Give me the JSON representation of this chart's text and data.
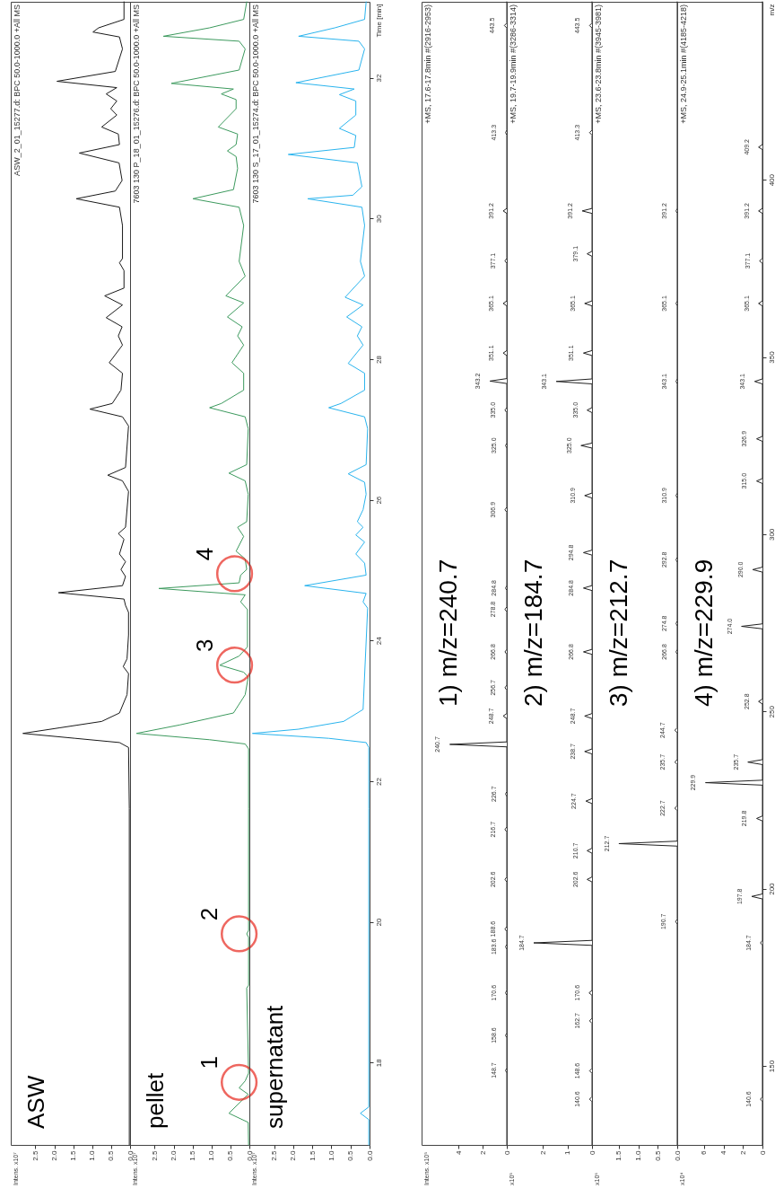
{
  "chart_data": [
    {
      "type": "line",
      "xlim": [
        3.15,
        0
      ],
      "ylim": [
        16.83,
        33.08
      ],
      "xticks": [
        2.5,
        {
          "value": 2,
          "label": "2.0"
        },
        1.5,
        {
          "value": 1,
          "label": "1.0"
        },
        0.5,
        {
          "value": 0,
          "label": "0.0"
        }
      ],
      "yticks": [
        18,
        20,
        22,
        24,
        26,
        28,
        30,
        32
      ],
      "tick_labels": "x",
      "series": [
        {
          "color": "#1a1a1a",
          "values": [
            16.83,
            21.61,
            22.48,
            22.55,
            22.61,
            22.68,
            22.76,
            22.85,
            22.97,
            23.23,
            23.53,
            23.63,
            23.74,
            24.08,
            24.4,
            24.5,
            24.59,
            24.68,
            24.78,
            24.91,
            25.01,
            25.12,
            25.23,
            25.44,
            25.52,
            25.61,
            26.12,
            26.27,
            26.35,
            26.46,
            27.05,
            27.18,
            27.29,
            27.37,
            27.56,
            27.8,
            27.95,
            28.2,
            28.33,
            28.46,
            28.59,
            28.77,
            28.9,
            29.01,
            29.26,
            29.37,
            29.43,
            29.9,
            30.16,
            30.28,
            30.39,
            30.54,
            30.79,
            30.93,
            31.05,
            31.2,
            31.3,
            31.47,
            31.56,
            31.67,
            31.77,
            31.86,
            31.95,
            32.09,
            32.41,
            32.58,
            32.65,
            32.71,
            32.83,
            33.08
          ],
          "x": [
            0.02,
            0.02,
            0.04,
            0.28,
            1.45,
            2.83,
            1.85,
            0.75,
            0.28,
            0.08,
            0.04,
            0.18,
            0.08,
            0.04,
            0.04,
            0.12,
            0.16,
            1.89,
            0.2,
            0.12,
            0.24,
            0.12,
            0.28,
            0.16,
            0.31,
            0.12,
            0.04,
            0.2,
            0.59,
            0.12,
            0.04,
            0.2,
            1.06,
            0.47,
            0.24,
            0.2,
            0.55,
            0.2,
            0.31,
            0.21,
            0.63,
            0.2,
            0.67,
            0.16,
            0.16,
            0.28,
            0.2,
            0.2,
            0.28,
            1.42,
            0.39,
            0.21,
            0.29,
            1.34,
            0.28,
            0.31,
            0.75,
            0.35,
            0.51,
            0.35,
            0.63,
            0.35,
            1.93,
            0.39,
            0.2,
            0.28,
            0.98,
            0.83,
            0.16,
            0.16
          ]
        }
      ],
      "annotations": [
        "ASW",
        "ASW_2_01_15277.d: BPC 50.0-1000.0 +All MS",
        "Intens. x10⁷"
      ]
    },
    {
      "type": "line",
      "xlim": [
        3.15,
        0
      ],
      "ylim": [
        16.83,
        33.08
      ],
      "xticks": [
        2.5,
        {
          "value": 2,
          "label": "2.0"
        },
        1.5,
        {
          "value": 1,
          "label": "1.0"
        },
        0.5,
        {
          "value": 0,
          "label": "0.0"
        }
      ],
      "yticks": [
        18,
        20,
        22,
        24,
        26,
        28,
        30,
        32
      ],
      "tick_labels": "x",
      "series": [
        {
          "color": "#3d9a5e",
          "values": [
            16.83,
            17.15,
            17.28,
            17.55,
            17.64,
            17.74,
            17.85,
            19.06,
            19.1,
            19.78,
            19.83,
            19.88,
            21.61,
            22.46,
            22.53,
            22.59,
            22.68,
            22.8,
            22.97,
            23.23,
            23.48,
            23.55,
            23.65,
            23.78,
            23.91,
            24.44,
            24.55,
            24.65,
            24.74,
            24.82,
            24.93,
            25.01,
            25.16,
            25.27,
            25.48,
            25.61,
            25.69,
            26.08,
            26.27,
            26.38,
            26.5,
            27.01,
            27.18,
            27.31,
            27.37,
            27.56,
            27.8,
            27.95,
            28.2,
            28.33,
            28.46,
            28.6,
            28.8,
            28.9,
            29.18,
            29.39,
            29.9,
            30.16,
            30.28,
            30.41,
            30.71,
            30.88,
            30.96,
            31.05,
            31.2,
            31.3,
            31.56,
            31.69,
            31.77,
            31.84,
            31.92,
            32.11,
            32.41,
            32.52,
            32.59,
            32.71,
            32.83,
            33.08
          ],
          "x": [
            0.02,
            0.03,
            0.54,
            0.03,
            0.27,
            0.11,
            0.02,
            0.07,
            0.02,
            0.02,
            0.07,
            0.02,
            0.02,
            0.02,
            0.11,
            1.05,
            2.98,
            1.84,
            0.42,
            0.11,
            0.03,
            0.15,
            0.78,
            0.27,
            0.05,
            0.05,
            0.23,
            0.11,
            2.39,
            0.27,
            0.23,
            0.07,
            0.11,
            0.35,
            0.15,
            0.31,
            0.07,
            0.03,
            0.11,
            0.54,
            0.07,
            0.03,
            0.11,
            1.05,
            0.74,
            0.15,
            0.15,
            0.46,
            0.15,
            0.31,
            0.19,
            0.58,
            0.15,
            0.62,
            0.11,
            0.27,
            0.15,
            0.27,
            1.49,
            0.42,
            0.31,
            0.35,
            0.58,
            0.35,
            0.31,
            0.82,
            0.35,
            0.35,
            0.74,
            0.42,
            2.06,
            0.27,
            0.11,
            0.27,
            2.27,
            1.05,
            0.15,
            0.07
          ]
        }
      ],
      "annotations": [
        "pellet",
        "7603 130 P_18_01_15276.d: BPC 50.0-1000.0 +All MS",
        "Intens. x10⁷",
        {
          "text": "1",
          "x": 0.27,
          "y": 17.72
        },
        {
          "text": "2",
          "x": 0.27,
          "y": 19.83
        },
        {
          "text": "3",
          "x": 0.39,
          "y": 23.65
        },
        {
          "text": "4",
          "x": 0.39,
          "y": 24.95
        }
      ]
    },
    {
      "type": "line",
      "xlim": [
        3.15,
        0
      ],
      "ylim": [
        16.83,
        33.08
      ],
      "xticks": [
        2.5,
        {
          "value": 2,
          "label": "2.0"
        },
        1.5,
        {
          "value": 1,
          "label": "1.0"
        },
        0.5,
        {
          "value": 0,
          "label": "0.0"
        }
      ],
      "yticks": [
        18,
        20,
        22,
        24,
        26,
        28,
        30,
        32
      ],
      "ylabel": "Time [min]",
      "series": [
        {
          "color": "#2ab4ee",
          "values": [
            16.83,
            17.19,
            17.28,
            17.37,
            21.61,
            22.48,
            22.55,
            22.61,
            22.68,
            22.74,
            22.85,
            23.02,
            24.46,
            24.55,
            24.67,
            24.78,
            24.93,
            25.1,
            25.23,
            25.4,
            25.5,
            25.61,
            25.69,
            25.86,
            26.08,
            26.25,
            26.37,
            26.5,
            27.01,
            27.18,
            27.31,
            27.37,
            27.56,
            27.8,
            27.94,
            28.2,
            28.33,
            28.46,
            28.6,
            28.77,
            28.88,
            29.18,
            29.39,
            29.9,
            30.16,
            30.28,
            30.33,
            30.45,
            30.79,
            30.91,
            31.01,
            31.18,
            31.28,
            31.47,
            31.67,
            31.76,
            31.84,
            31.93,
            32.11,
            32.41,
            32.52,
            32.59,
            32.71,
            32.83,
            33.08
          ],
          "x": [
            0.02,
            0.02,
            0.24,
            0.02,
            0.02,
            0.02,
            0.09,
            1.07,
            3.07,
            1.86,
            0.68,
            0.17,
            0.05,
            0.17,
            0.09,
            1.7,
            0.09,
            0.13,
            0.36,
            0.13,
            0.36,
            0.17,
            0.32,
            0.17,
            0.09,
            0.13,
            0.56,
            0.09,
            0.05,
            0.13,
            1.07,
            0.75,
            0.13,
            0.13,
            0.56,
            0.17,
            0.32,
            0.2,
            0.6,
            0.17,
            0.64,
            0.13,
            0.24,
            0.13,
            0.2,
            1.62,
            0.44,
            0.2,
            0.32,
            2.13,
            0.4,
            0.36,
            0.79,
            0.36,
            0.36,
            0.79,
            0.4,
            1.93,
            0.28,
            0.13,
            0.28,
            1.86,
            0.91,
            0.13,
            0.09
          ]
        }
      ],
      "annotations": [
        "supernatant",
        "7603 130 S_17_01_15274.d: BPC 50.0-1000.0 +All MS",
        "Intens. x10⁷"
      ]
    },
    {
      "type": "line",
      "xlim": [
        7.1,
        0
      ],
      "ylim": [
        127.7,
        450.2
      ],
      "xticks": [
        4,
        2,
        0
      ],
      "yticks": [
        150,
        200,
        250,
        300,
        350,
        400
      ],
      "tick_labels": "x",
      "series": [
        {
          "color": "#222222",
          "values": [
            127.7,
            148.0,
            148.7,
            149.4,
            157.9,
            158.6,
            159.3,
            169.9,
            170.6,
            171.3,
            182.9,
            183.6,
            184.3,
            187.9,
            188.6,
            189.3,
            201.9,
            202.6,
            203.3,
            216.0,
            216.7,
            217.4,
            226.0,
            226.7,
            227.4,
            240.0,
            240.7,
            241.4,
            248.0,
            248.7,
            249.4,
            256.0,
            256.7,
            257.4,
            266.1,
            266.8,
            267.5,
            278.1,
            278.8,
            279.5,
            284.1,
            284.8,
            285.5,
            306.2,
            306.9,
            307.6,
            324.3,
            325.0,
            325.7,
            334.3,
            335.0,
            335.7,
            342.5,
            343.2,
            343.9,
            350.4,
            351.1,
            351.8,
            364.4,
            365.1,
            365.8,
            376.4,
            377.1,
            377.8,
            390.5,
            391.2,
            391.9,
            412.6,
            413.3,
            414.0,
            442.8,
            443.5,
            444.2,
            450.2
          ],
          "x": [
            0,
            0,
            0.1,
            0,
            0,
            0.1,
            0,
            0,
            0.1,
            0,
            0,
            0.1,
            0,
            0,
            0.15,
            0,
            0,
            0.15,
            0,
            0,
            0.15,
            0,
            0,
            0.1,
            0,
            0,
            4.75,
            0,
            0,
            0.3,
            0,
            0,
            0.15,
            0,
            0,
            0.15,
            0,
            0,
            0.15,
            0,
            0,
            0.1,
            0,
            0,
            0.15,
            0,
            0,
            0.1,
            0,
            0,
            0.15,
            0,
            0,
            1.4,
            0,
            0,
            0.3,
            0,
            0,
            0.3,
            0,
            0,
            0.15,
            0,
            0,
            0.3,
            0,
            0,
            0.1,
            0,
            0,
            0.2,
            0,
            0
          ]
        }
      ],
      "annotations": [
        "+MS, 17.6-17.8min #(2916-2953)",
        "1) m/z=240.7",
        "Intens. x10⁵",
        {
          "text": "148.7",
          "y": 148.7,
          "x": 0.1
        },
        {
          "text": "158.6",
          "y": 158.6,
          "x": 0.1
        },
        {
          "text": "170.6",
          "y": 170.6,
          "x": 0.1
        },
        {
          "text": "183.6",
          "y": 183.6,
          "x": 0.1
        },
        {
          "text": "188.6",
          "y": 188.6,
          "x": 0.15
        },
        {
          "text": "202.6",
          "y": 202.6,
          "x": 0.15
        },
        {
          "text": "216.7",
          "y": 216.7,
          "x": 0.15
        },
        {
          "text": "226.7",
          "y": 226.7,
          "x": 0.1
        },
        {
          "text": "240.7",
          "y": 240.7,
          "x": 4.75
        },
        {
          "text": "248.7",
          "y": 248.7,
          "x": 0.3
        },
        {
          "text": "256.7",
          "y": 256.7,
          "x": 0.15
        },
        {
          "text": "266.8",
          "y": 266.8,
          "x": 0.15
        },
        {
          "text": "278.8",
          "y": 278.8,
          "x": 0.15
        },
        {
          "text": "284.8",
          "y": 284.8,
          "x": 0.1
        },
        {
          "text": "306.9",
          "y": 306.9,
          "x": 0.15
        },
        {
          "text": "325.0",
          "y": 325.0,
          "x": 0.1
        },
        {
          "text": "335.0",
          "y": 335.0,
          "x": 0.15
        },
        {
          "text": "343.2",
          "y": 343.2,
          "x": 1.4
        },
        {
          "text": "351.1",
          "y": 351.1,
          "x": 0.3
        },
        {
          "text": "365.1",
          "y": 365.1,
          "x": 0.3
        },
        {
          "text": "377.1",
          "y": 377.1,
          "x": 0.15
        },
        {
          "text": "391.2",
          "y": 391.2,
          "x": 0.3
        },
        {
          "text": "413.3",
          "y": 413.3,
          "x": 0.1
        },
        {
          "text": "443.5",
          "y": 443.5,
          "x": 0.2
        }
      ]
    },
    {
      "type": "line",
      "xlim": [
        3.48,
        0
      ],
      "ylim": [
        127.7,
        450.2
      ],
      "xticks": [
        2,
        1,
        0
      ],
      "yticks": [
        150,
        200,
        250,
        300,
        350,
        400
      ],
      "tick_labels": "x",
      "series": [
        {
          "color": "#222222",
          "values": [
            127.7,
            139.9,
            140.6,
            141.3,
            147.9,
            148.6,
            149.3,
            162.0,
            162.7,
            163.4,
            169.9,
            170.6,
            171.3,
            184.0,
            184.7,
            185.4,
            201.9,
            202.6,
            203.3,
            210.0,
            210.7,
            211.4,
            224.0,
            224.7,
            225.4,
            238.0,
            238.7,
            239.4,
            248.0,
            248.7,
            249.4,
            266.1,
            266.8,
            267.5,
            284.1,
            284.8,
            285.5,
            294.1,
            294.8,
            295.5,
            310.2,
            310.9,
            311.6,
            324.3,
            325.0,
            325.7,
            334.3,
            335.0,
            335.7,
            342.4,
            343.1,
            343.8,
            350.4,
            351.1,
            351.8,
            364.4,
            365.1,
            365.8,
            378.4,
            379.1,
            379.8,
            390.5,
            391.2,
            391.9,
            412.6,
            413.3,
            414.0,
            442.8,
            443.5,
            444.2,
            450.2
          ],
          "x": [
            0,
            0,
            0.1,
            0,
            0,
            0.1,
            0,
            0,
            0.1,
            0,
            0,
            0.12,
            0,
            0,
            2.38,
            0,
            0,
            0.2,
            0,
            0,
            0.2,
            0,
            0,
            0.25,
            0,
            0,
            0.3,
            0,
            0,
            0.3,
            0,
            0,
            0.35,
            0,
            0,
            0.35,
            0,
            0,
            0.35,
            0,
            0,
            0.3,
            0,
            0,
            0.45,
            0,
            0,
            0.2,
            0,
            0,
            1.46,
            0,
            0,
            0.35,
            0,
            0,
            0.3,
            0,
            0,
            0.2,
            0,
            0,
            0.4,
            0,
            0,
            0.1,
            0,
            0,
            0.1,
            0,
            0
          ]
        }
      ],
      "annotations": [
        "+MS, 19.7-19.9min #(3286-3314)",
        "2) m/z=184.7",
        "x10⁵",
        {
          "text": "140.6",
          "y": 140.6,
          "x": 0.1
        },
        {
          "text": "148.6",
          "y": 148.6,
          "x": 0.1
        },
        {
          "text": "162.7",
          "y": 162.7,
          "x": 0.1
        },
        {
          "text": "170.6",
          "y": 170.6,
          "x": 0.12
        },
        {
          "text": "184.7",
          "y": 184.7,
          "x": 2.38
        },
        {
          "text": "202.6",
          "y": 202.6,
          "x": 0.2
        },
        {
          "text": "210.7",
          "y": 210.7,
          "x": 0.2
        },
        {
          "text": "224.7",
          "y": 224.7,
          "x": 0.25
        },
        {
          "text": "238.7",
          "y": 238.7,
          "x": 0.3
        },
        {
          "text": "248.7",
          "y": 248.7,
          "x": 0.3
        },
        {
          "text": "266.8",
          "y": 266.8,
          "x": 0.35
        },
        {
          "text": "284.8",
          "y": 284.8,
          "x": 0.35
        },
        {
          "text": "294.8",
          "y": 294.8,
          "x": 0.35
        },
        {
          "text": "310.9",
          "y": 310.9,
          "x": 0.3
        },
        {
          "text": "325.0",
          "y": 325.0,
          "x": 0.45
        },
        {
          "text": "335.0",
          "y": 335.0,
          "x": 0.2
        },
        {
          "text": "343.1",
          "y": 343.1,
          "x": 1.46
        },
        {
          "text": "351.1",
          "y": 351.1,
          "x": 0.35
        },
        {
          "text": "365.1",
          "y": 365.1,
          "x": 0.3
        },
        {
          "text": "379.1",
          "y": 379.1,
          "x": 0.2
        },
        {
          "text": "391.2",
          "y": 391.2,
          "x": 0.4
        },
        {
          "text": "413.3",
          "y": 413.3,
          "x": 0.1
        },
        {
          "text": "443.5",
          "y": 443.5,
          "x": 0.1
        }
      ]
    },
    {
      "type": "line",
      "xlim": [
        2.19,
        0
      ],
      "ylim": [
        127.7,
        450.2
      ],
      "xticks": [
        1.5,
        {
          "value": 1,
          "label": "1.0"
        },
        0.5,
        {
          "value": 0,
          "label": "0.0"
        }
      ],
      "yticks": [
        150,
        200,
        250,
        300,
        350,
        400
      ],
      "tick_labels": "x",
      "series": [
        {
          "color": "#222222",
          "values": [
            127.7,
            190.0,
            190.7,
            191.4,
            212.0,
            212.7,
            213.4,
            222.0,
            222.7,
            223.4,
            235.0,
            235.7,
            236.4,
            244.0,
            244.7,
            245.4,
            266.1,
            266.8,
            267.5,
            274.1,
            274.8,
            275.5,
            292.1,
            292.8,
            293.5,
            310.2,
            310.9,
            311.6,
            342.4,
            343.1,
            343.8,
            364.4,
            365.1,
            365.8,
            390.5,
            391.2,
            391.9,
            450.2
          ],
          "x": [
            0,
            0,
            0.04,
            0,
            0,
            1.5,
            0,
            0,
            0.06,
            0,
            0,
            0.06,
            0,
            0,
            0.06,
            0,
            0,
            0.03,
            0,
            0,
            0.03,
            0,
            0,
            0.03,
            0,
            0,
            0.03,
            0,
            0,
            0.03,
            0,
            0,
            0.03,
            0,
            0,
            0.03,
            0,
            0
          ]
        }
      ],
      "annotations": [
        "+MS, 23.6-23.8min #(3945-3981)",
        "3) m/z=212.7",
        "x10⁶",
        {
          "text": "190.7",
          "y": 190.7,
          "x": 0.04
        },
        {
          "text": "212.7",
          "y": 212.7,
          "x": 1.5
        },
        {
          "text": "222.7",
          "y": 222.7,
          "x": 0.06
        },
        {
          "text": "235.7",
          "y": 235.7,
          "x": 0.06
        },
        {
          "text": "244.7",
          "y": 244.7,
          "x": 0.06
        },
        {
          "text": "266.8",
          "y": 266.8,
          "x": 0.03
        },
        {
          "text": "274.8",
          "y": 274.8,
          "x": 0.03
        },
        {
          "text": "292.8",
          "y": 292.8,
          "x": 0.03
        },
        {
          "text": "310.9",
          "y": 310.9,
          "x": 0.03
        },
        {
          "text": "343.1",
          "y": 343.1,
          "x": 0.03
        },
        {
          "text": "365.1",
          "y": 365.1,
          "x": 0.03
        },
        {
          "text": "391.2",
          "y": 391.2,
          "x": 0.03
        }
      ]
    },
    {
      "type": "line",
      "xlim": [
        8.75,
        0
      ],
      "ylim": [
        127.7,
        450.2
      ],
      "xticks": [
        6,
        4,
        2,
        0
      ],
      "yticks": [
        150,
        200,
        250,
        300,
        350,
        400
      ],
      "ylabel": "m/z",
      "series": [
        {
          "color": "#222222",
          "values": [
            127.7,
            139.9,
            140.6,
            141.3,
            184.0,
            184.7,
            185.4,
            197.1,
            197.8,
            198.5,
            219.1,
            219.8,
            220.5,
            229.2,
            229.9,
            230.6,
            235.0,
            235.7,
            236.4,
            252.1,
            252.8,
            253.5,
            273.3,
            274.0,
            274.7,
            289.3,
            290.0,
            290.7,
            314.3,
            315.0,
            315.7,
            326.2,
            326.9,
            327.6,
            342.4,
            343.1,
            343.8,
            364.4,
            365.1,
            365.8,
            376.4,
            377.1,
            377.8,
            390.5,
            391.2,
            391.9,
            408.5,
            409.2,
            409.9,
            450.2
          ],
          "x": [
            0,
            0,
            0.2,
            0,
            0,
            0.2,
            0,
            0,
            1.1,
            0,
            0,
            0.6,
            0,
            0,
            5.85,
            0,
            0,
            1.5,
            0,
            0,
            0.4,
            0,
            0,
            2.15,
            0,
            0,
            1.0,
            0,
            0,
            0.6,
            0,
            0,
            0.6,
            0,
            0,
            0.8,
            0,
            0,
            0.4,
            0,
            0,
            0.3,
            0,
            0,
            0.4,
            0,
            0,
            0.4,
            0,
            0
          ]
        }
      ],
      "annotations": [
        "+MS, 24.9-25.1min #(4185-4218)",
        "4) m/z=229.9",
        "x10⁴",
        {
          "text": "140.6",
          "y": 140.6,
          "x": 0.2
        },
        {
          "text": "184.7",
          "y": 184.7,
          "x": 0.2
        },
        {
          "text": "197.8",
          "y": 197.8,
          "x": 1.1
        },
        {
          "text": "219.8",
          "y": 219.8,
          "x": 0.6
        },
        {
          "text": "229.9",
          "y": 229.9,
          "x": 5.85
        },
        {
          "text": "235.7",
          "y": 235.7,
          "x": 1.5
        },
        {
          "text": "252.8",
          "y": 252.8,
          "x": 0.4
        },
        {
          "text": "274.0",
          "y": 274.0,
          "x": 2.15
        },
        {
          "text": "290.0",
          "y": 290.0,
          "x": 1.0
        },
        {
          "text": "315.0",
          "y": 315.0,
          "x": 0.6
        },
        {
          "text": "326.9",
          "y": 326.9,
          "x": 0.6
        },
        {
          "text": "343.1",
          "y": 343.1,
          "x": 0.8
        },
        {
          "text": "365.1",
          "y": 365.1,
          "x": 0.4
        },
        {
          "text": "377.1",
          "y": 377.1,
          "x": 0.3
        },
        {
          "text": "391.2",
          "y": 391.2,
          "x": 0.4
        },
        {
          "text": "409.2",
          "y": 409.2,
          "x": 0.4
        }
      ]
    }
  ]
}
